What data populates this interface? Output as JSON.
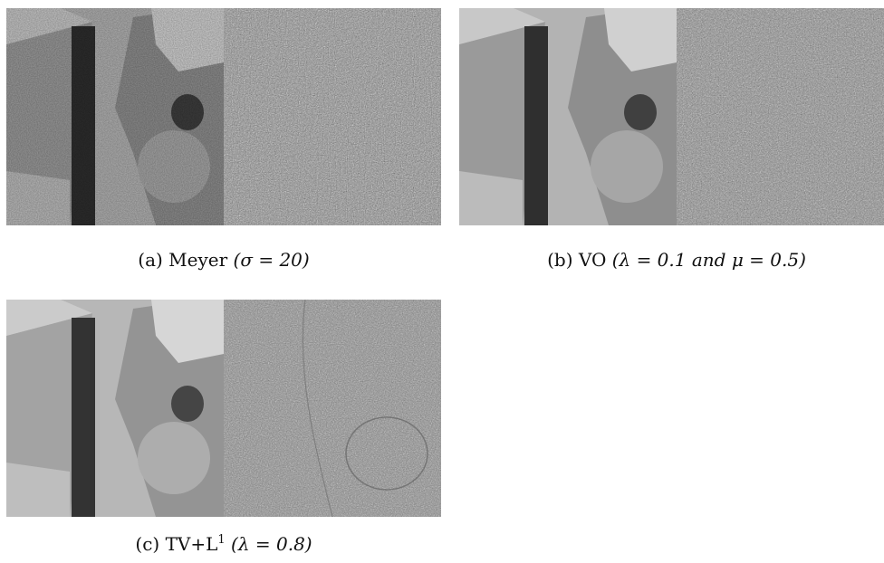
{
  "figures": [
    {
      "id": "a",
      "label": "(a)",
      "method": "Meyer",
      "params": "(σ = 20)",
      "caption": "(a) Meyer (σ = 20)",
      "left_panel": "cartoon component",
      "right_panel": "texture component"
    },
    {
      "id": "b",
      "label": "(b)",
      "method": "VO",
      "params": "(λ = 0.1 and μ = 0.5)",
      "caption": "(b) VO (λ = 0.1 and μ = 0.5)",
      "left_panel": "cartoon component",
      "right_panel": "texture component"
    },
    {
      "id": "c",
      "label": "(c)",
      "method": "TV+L",
      "method_sup": "1",
      "params": "(λ = 0.8)",
      "caption": "(c) TV+L1 (λ = 0.8)",
      "left_panel": "cartoon component",
      "right_panel": "texture component"
    }
  ],
  "colors": {
    "background": "#ffffff",
    "cartoon_light": "#b9b9b9",
    "cartoon_dark": "#2c2c2c",
    "texture_mid": "#8a8a8a"
  }
}
